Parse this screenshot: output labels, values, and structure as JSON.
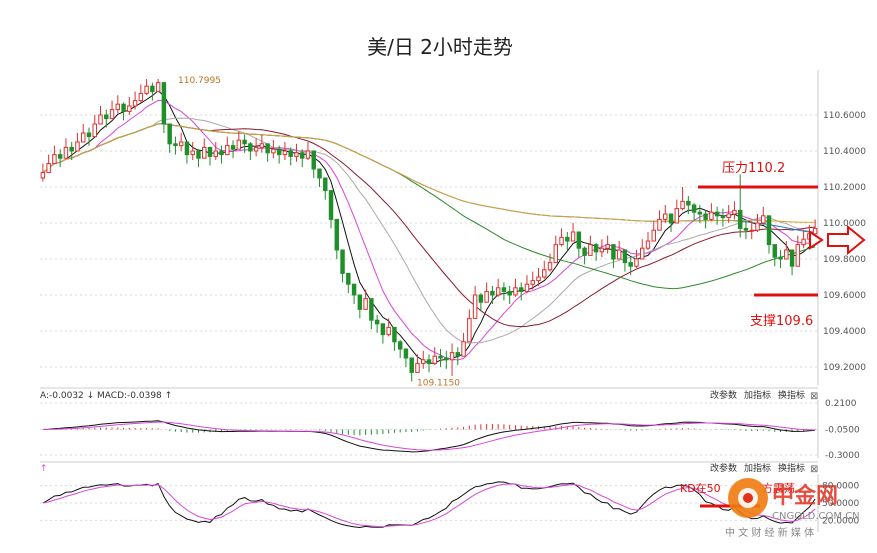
{
  "title": "美/日 2小时走势",
  "colors": {
    "up": "#e03030",
    "down": "#1f8f2a",
    "ma_black": "#111111",
    "ma_pink": "#d946d9",
    "ma_gray": "#aaaaaa",
    "ma_darkred": "#8b1a2b",
    "ma_green": "#2a8a2a",
    "ma_blue": "#1f78c8",
    "ma_orange": "#e0a030",
    "level_red": "#e01010",
    "grid": "#d9d9d9",
    "axis_text": "#555555"
  },
  "chart_data": [
    {
      "type": "candlestick",
      "title": "美/日 2小时走势",
      "ylim": [
        109.1,
        110.85
      ],
      "yticks": [
        "110.6000",
        "110.4000",
        "110.2000",
        "110.0000",
        "109.8000",
        "109.6000",
        "109.4000",
        "109.2000"
      ],
      "y_tick_values": [
        110.6,
        110.4,
        110.2,
        110.0,
        109.8,
        109.6,
        109.4,
        109.2
      ],
      "annotations": {
        "high_label": "110.7995",
        "high_value": 110.7995,
        "low_label": "109.1150",
        "low_value": 109.115,
        "resistance_label": "压力110.2",
        "resistance_value": 110.2,
        "support_label": "支撑109.6",
        "support_value": 109.6
      },
      "close": [
        110.28,
        110.33,
        110.38,
        110.36,
        110.42,
        110.4,
        110.45,
        110.5,
        110.48,
        110.55,
        110.6,
        110.58,
        110.63,
        110.66,
        110.62,
        110.65,
        110.68,
        110.72,
        110.76,
        110.73,
        110.78,
        110.55,
        110.44,
        110.43,
        110.45,
        110.38,
        110.4,
        110.36,
        110.42,
        110.37,
        110.4,
        110.38,
        110.43,
        110.41,
        110.46,
        110.44,
        110.4,
        110.42,
        110.44,
        110.39,
        110.41,
        110.38,
        110.4,
        110.37,
        110.39,
        110.36,
        110.4,
        110.3,
        110.25,
        110.18,
        110.02,
        109.85,
        109.72,
        109.66,
        109.6,
        109.52,
        109.58,
        109.46,
        109.44,
        109.38,
        109.42,
        109.34,
        109.3,
        109.25,
        109.17,
        109.22,
        109.24,
        109.22,
        109.26,
        109.25,
        109.24,
        109.28,
        109.26,
        109.34,
        109.47,
        109.6,
        109.56,
        109.62,
        109.6,
        109.64,
        109.62,
        109.6,
        109.64,
        109.62,
        109.66,
        109.68,
        109.7,
        109.74,
        109.78,
        109.88,
        109.92,
        109.9,
        109.95,
        109.86,
        109.82,
        109.88,
        109.84,
        109.86,
        109.88,
        109.8,
        109.85,
        109.78,
        109.76,
        109.8,
        109.86,
        109.9,
        109.96,
        110.02,
        110.05,
        110.0,
        110.08,
        110.12,
        110.1,
        110.06,
        110.05,
        110.02,
        110.06,
        110.04,
        110.03,
        110.05,
        110.07,
        109.97,
        109.96,
        109.96,
        110.0,
        110.04,
        109.88,
        109.81,
        109.8,
        109.85,
        109.76,
        109.88,
        109.91,
        109.94,
        109.97
      ],
      "high": [
        110.33,
        110.38,
        110.43,
        110.41,
        110.47,
        110.45,
        110.5,
        110.55,
        110.53,
        110.6,
        110.65,
        110.63,
        110.68,
        110.71,
        110.67,
        110.7,
        110.73,
        110.77,
        110.8,
        110.78,
        110.8,
        110.78,
        110.49,
        110.48,
        110.5,
        110.43,
        110.45,
        110.41,
        110.47,
        110.42,
        110.45,
        110.43,
        110.48,
        110.46,
        110.51,
        110.49,
        110.45,
        110.47,
        110.49,
        110.44,
        110.46,
        110.43,
        110.45,
        110.42,
        110.44,
        110.41,
        110.45,
        110.35,
        110.3,
        110.23,
        110.07,
        109.9,
        109.77,
        109.71,
        109.65,
        109.57,
        109.63,
        109.51,
        109.49,
        109.43,
        109.47,
        109.39,
        109.35,
        109.3,
        109.22,
        109.27,
        109.29,
        109.27,
        109.31,
        109.3,
        109.29,
        109.33,
        109.31,
        109.39,
        109.52,
        109.65,
        109.61,
        109.67,
        109.65,
        109.69,
        109.67,
        109.65,
        109.69,
        109.67,
        109.71,
        109.73,
        109.75,
        109.79,
        109.83,
        109.93,
        109.97,
        109.95,
        110.0,
        109.91,
        109.87,
        109.93,
        109.89,
        109.91,
        109.93,
        109.85,
        109.9,
        109.83,
        109.81,
        109.85,
        109.91,
        109.95,
        110.01,
        110.07,
        110.1,
        110.05,
        110.13,
        110.2,
        110.15,
        110.11,
        110.1,
        110.07,
        110.11,
        110.09,
        110.08,
        110.1,
        110.12,
        110.27,
        110.01,
        110.01,
        110.05,
        110.09,
        109.93,
        109.86,
        109.85,
        109.9,
        109.81,
        109.93,
        109.96,
        109.99,
        110.02
      ],
      "low": [
        110.23,
        110.28,
        110.33,
        110.31,
        110.37,
        110.35,
        110.4,
        110.45,
        110.43,
        110.5,
        110.55,
        110.53,
        110.58,
        110.61,
        110.57,
        110.6,
        110.63,
        110.67,
        110.71,
        110.68,
        110.73,
        110.5,
        110.39,
        110.38,
        110.4,
        110.33,
        110.35,
        110.31,
        110.37,
        110.32,
        110.35,
        110.33,
        110.38,
        110.36,
        110.41,
        110.39,
        110.35,
        110.37,
        110.39,
        110.34,
        110.36,
        110.33,
        110.35,
        110.32,
        110.34,
        110.31,
        110.35,
        110.25,
        110.2,
        110.13,
        109.97,
        109.8,
        109.67,
        109.61,
        109.55,
        109.47,
        109.53,
        109.41,
        109.39,
        109.33,
        109.37,
        109.29,
        109.25,
        109.2,
        109.12,
        109.17,
        109.19,
        109.17,
        109.21,
        109.2,
        109.19,
        109.15,
        109.21,
        109.29,
        109.42,
        109.55,
        109.51,
        109.57,
        109.55,
        109.59,
        109.57,
        109.55,
        109.59,
        109.57,
        109.61,
        109.63,
        109.65,
        109.69,
        109.73,
        109.83,
        109.87,
        109.85,
        109.9,
        109.81,
        109.77,
        109.83,
        109.79,
        109.81,
        109.83,
        109.75,
        109.8,
        109.73,
        109.71,
        109.75,
        109.81,
        109.85,
        109.91,
        109.97,
        110.0,
        109.95,
        110.03,
        110.07,
        110.05,
        110.01,
        110.0,
        109.97,
        110.01,
        109.99,
        109.98,
        110.0,
        110.02,
        109.92,
        109.91,
        109.91,
        109.95,
        109.99,
        109.83,
        109.76,
        109.75,
        109.8,
        109.71,
        109.83,
        109.86,
        109.89,
        109.92
      ],
      "macd_panel": {
        "legend": "A:-0.0032 ↓ MACD:-0.0398 ↑",
        "yticks": [
          "0.2100",
          "-0.0500",
          "-0.3000"
        ],
        "y_tick_values": [
          0.21,
          -0.05,
          -0.3
        ],
        "ylim": [
          -0.33,
          0.24
        ],
        "buttons": [
          "改参数",
          "加指标",
          "换指标"
        ],
        "close_symbol": "⊠"
      },
      "kd_panel": {
        "legend": "↑",
        "note": "KD在50",
        "note_suffix": "方震荡",
        "yticks": [
          "80.0000",
          "50.0000",
          "20.0000"
        ],
        "y_tick_values": [
          80,
          50,
          20
        ],
        "ylim": [
          0,
          100
        ],
        "buttons": [
          "改参数",
          "加指标",
          "换指标"
        ],
        "close_symbol": "⊠"
      }
    }
  ],
  "watermark": {
    "name": "中金网",
    "url": "CNGOLD.COM.CN",
    "slogan": "中 文 财 经 新 媒 体"
  }
}
